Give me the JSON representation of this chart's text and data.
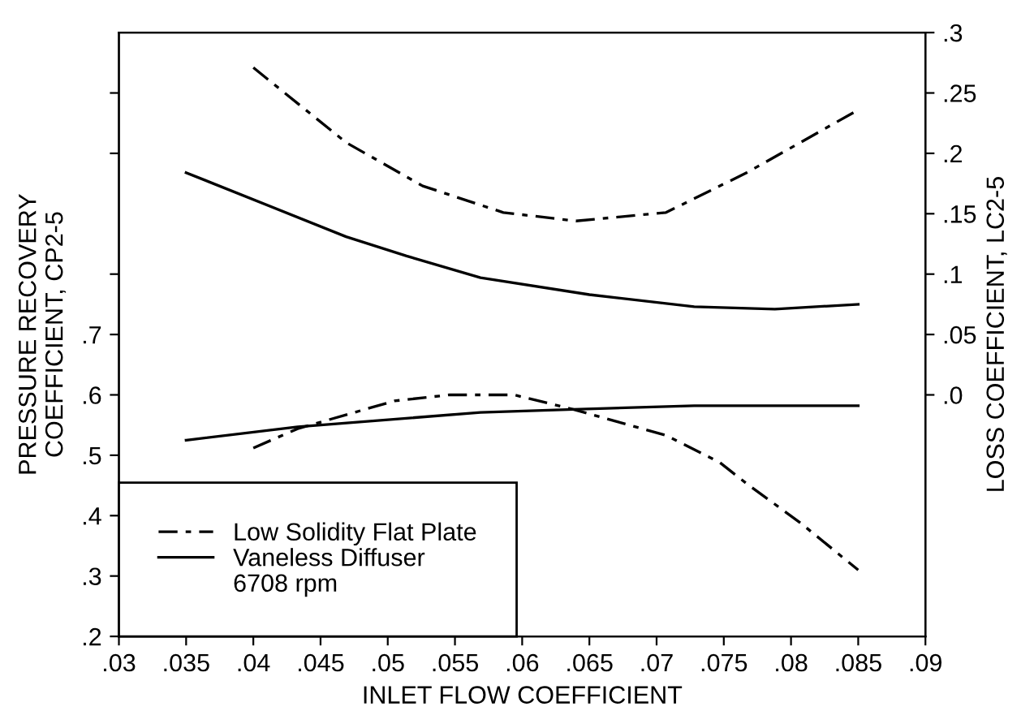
{
  "chart_data": {
    "type": "line",
    "xlabel": "INLET FLOW COEFFICIENT",
    "ylabel": "PRESSURE RECOVERY\nCOEFFICIENT, CP2-5",
    "y2label": "LOSS COEFFICIENT, LC2-5",
    "xlim": [
      0.03,
      0.09
    ],
    "xticks": [
      {
        "value": 0.03,
        "label": ".03"
      },
      {
        "value": 0.035,
        "label": ".035"
      },
      {
        "value": 0.04,
        "label": ".04"
      },
      {
        "value": 0.045,
        "label": ".045"
      },
      {
        "value": 0.05,
        "label": ".05"
      },
      {
        "value": 0.055,
        "label": ".055"
      },
      {
        "value": 0.06,
        "label": ".06"
      },
      {
        "value": 0.065,
        "label": ".065"
      },
      {
        "value": 0.07,
        "label": ".07"
      },
      {
        "value": 0.075,
        "label": ".075"
      },
      {
        "value": 0.08,
        "label": ".08"
      },
      {
        "value": 0.085,
        "label": ".085"
      },
      {
        "value": 0.09,
        "label": ".09"
      }
    ],
    "ylim": [
      0.2,
      1.2
    ],
    "yticks": [
      {
        "value": 0.2,
        "label": ".2"
      },
      {
        "value": 0.3,
        "label": ".3"
      },
      {
        "value": 0.4,
        "label": ".4"
      },
      {
        "value": 0.5,
        "label": ".5"
      },
      {
        "value": 0.6,
        "label": ".6"
      },
      {
        "value": 0.7,
        "label": ".7"
      },
      {
        "value": 0.8,
        "label": null
      },
      {
        "value": 1.0,
        "label": null
      },
      {
        "value": 1.1,
        "label": null
      }
    ],
    "y2lim": [
      -0.2,
      0.3
    ],
    "y2ticks": [
      {
        "value": 0.0,
        "label": ".0"
      },
      {
        "value": 0.05,
        "label": ".05"
      },
      {
        "value": 0.1,
        "label": ".1"
      },
      {
        "value": 0.15,
        "label": ".15"
      },
      {
        "value": 0.2,
        "label": ".2"
      },
      {
        "value": 0.25,
        "label": ".25"
      },
      {
        "value": 0.3,
        "label": ".3"
      }
    ],
    "series": [
      {
        "name": "Low Solidity Flat Plate",
        "color": "#000000",
        "line_style": "dashdot",
        "axis": "y2",
        "x": [
          0.04,
          0.0469,
          0.0526,
          0.0586,
          0.064,
          0.0707,
          0.0767,
          0.0807,
          0.085
        ],
        "values": [
          0.271,
          0.209,
          0.173,
          0.151,
          0.144,
          0.151,
          0.184,
          0.209,
          0.236
        ]
      },
      {
        "name": "Vaneless Diffuser",
        "color": "#000000",
        "line_style": "solid",
        "axis": "y2",
        "x": [
          0.035,
          0.0469,
          0.0514,
          0.0569,
          0.065,
          0.0728,
          0.0788,
          0.085
        ],
        "values": [
          0.184,
          0.131,
          0.115,
          0.097,
          0.083,
          0.073,
          0.071,
          0.075
        ]
      },
      {
        "color": "#000000",
        "line_style": "dashdot",
        "x": [
          0.04,
          0.0433,
          0.0505,
          0.0546,
          0.0594,
          0.0638,
          0.0707,
          0.0747,
          0.0767,
          0.0807,
          0.085
        ],
        "values": [
          0.512,
          0.544,
          0.59,
          0.6,
          0.6,
          0.576,
          0.533,
          0.488,
          0.453,
          0.388,
          0.31
        ]
      },
      {
        "color": "#000000",
        "line_style": "solid",
        "x": [
          0.035,
          0.0433,
          0.0569,
          0.0638,
          0.0728,
          0.085
        ],
        "values": [
          0.525,
          0.547,
          0.571,
          0.576,
          0.582,
          0.582
        ]
      }
    ],
    "legend": "bottom left",
    "grid": false,
    "annotations": [
      "6708 rpm"
    ]
  }
}
